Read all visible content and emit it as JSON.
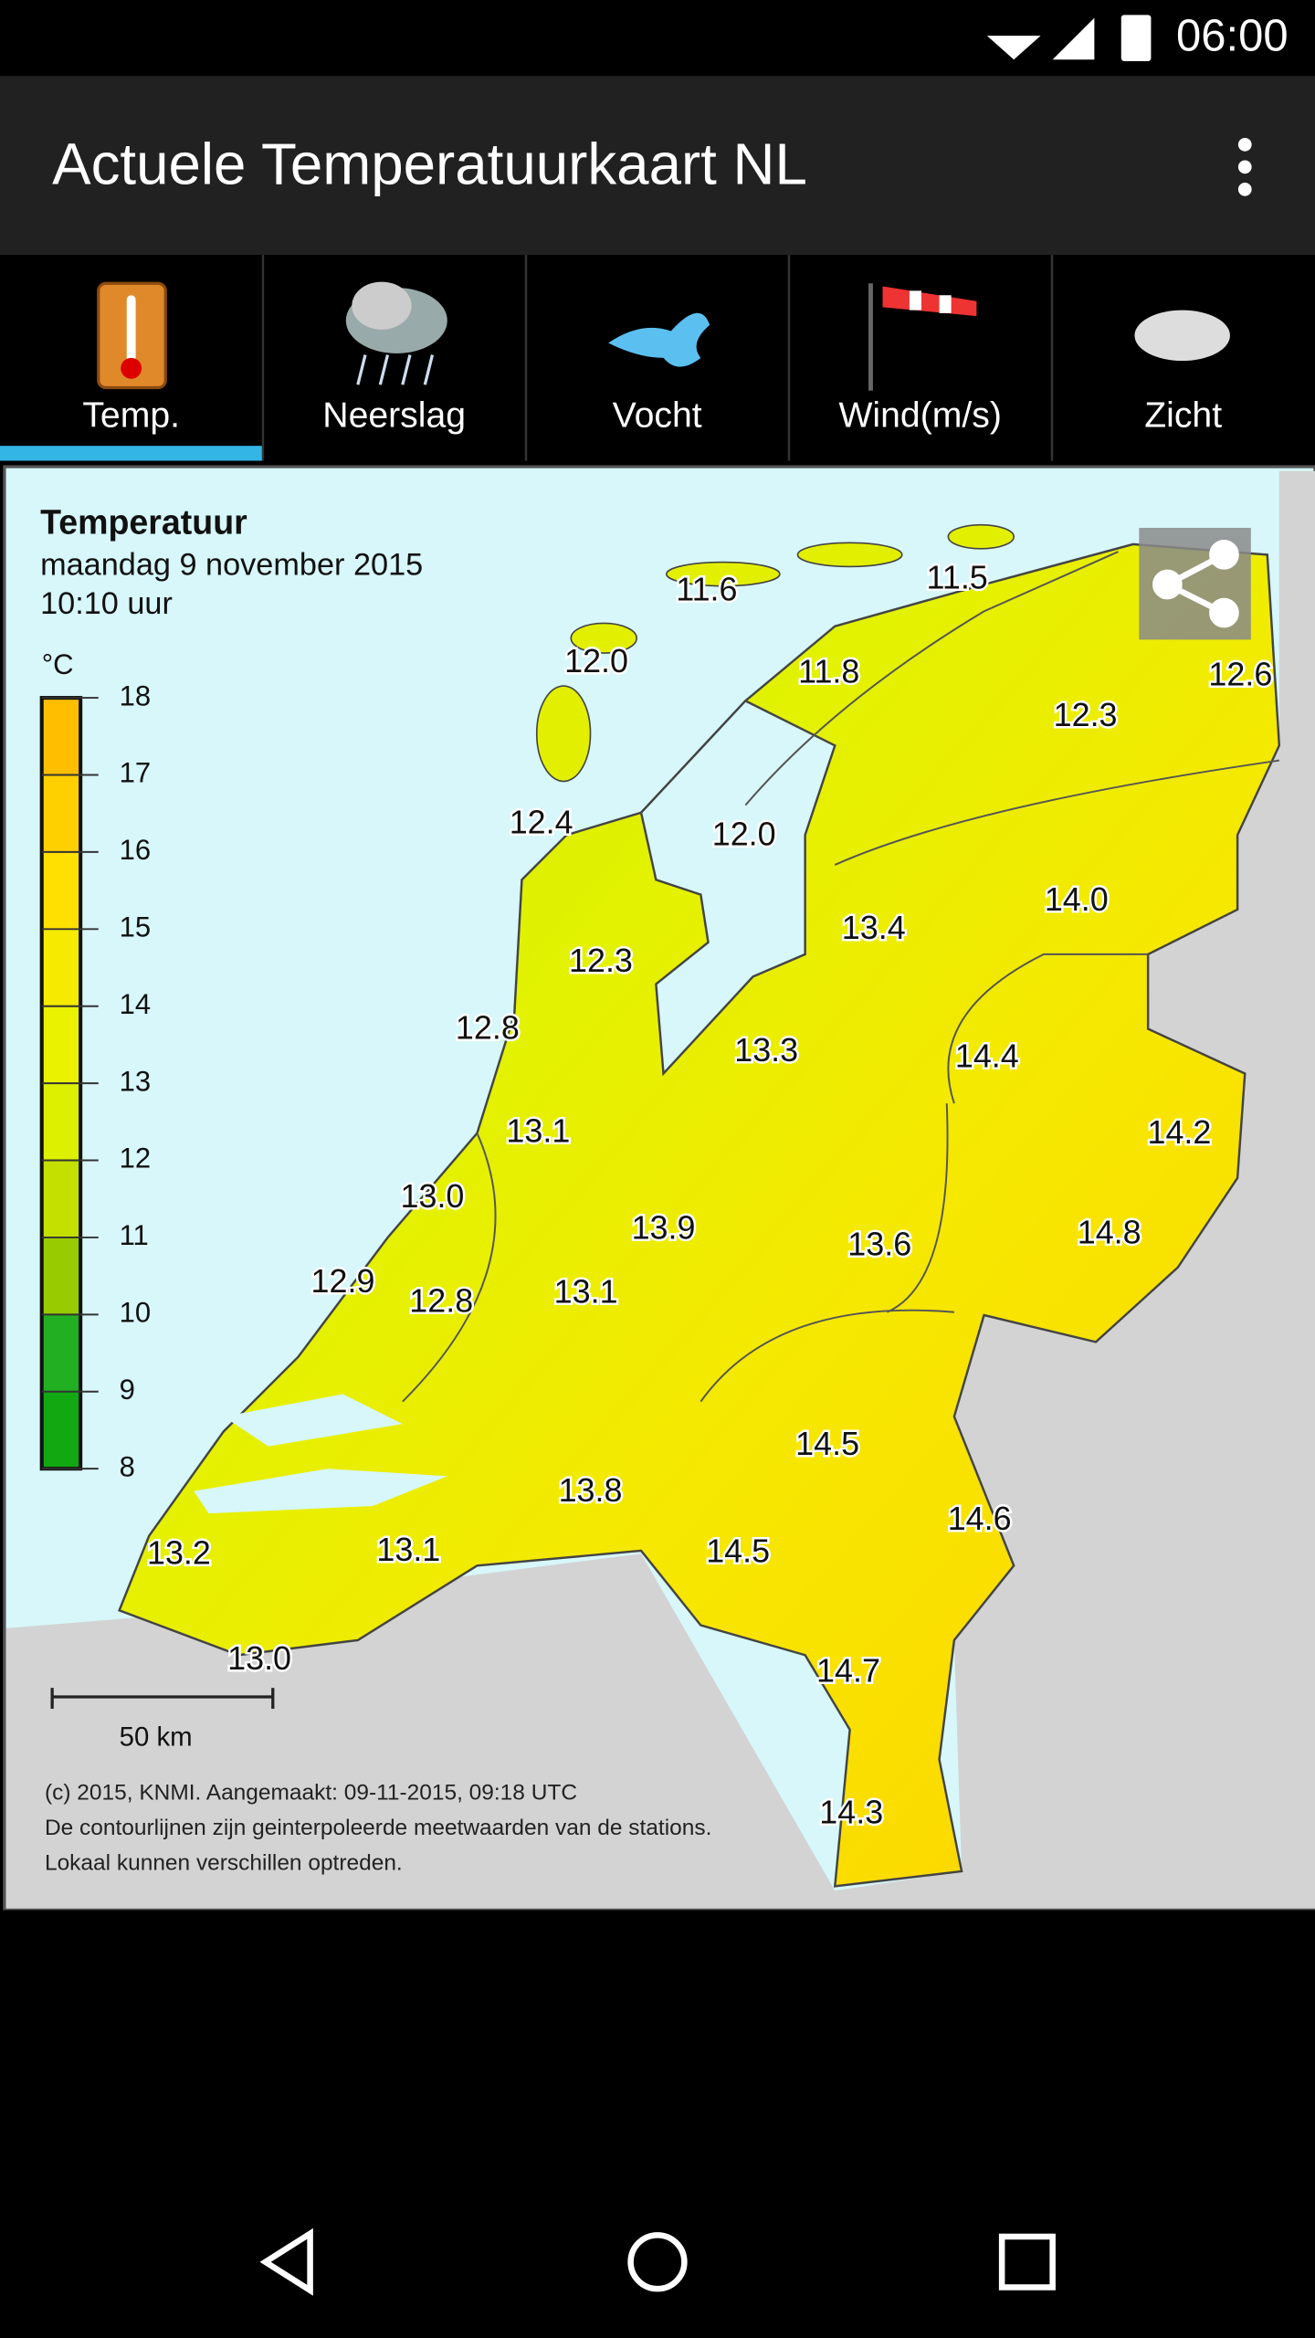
{
  "status_bar": {
    "time": "06:00"
  },
  "app_bar": {
    "title": "Actuele Temperatuurkaart NL"
  },
  "tabs": [
    "Temp.",
    "Neerslag",
    "Vocht",
    "Wind(m/s)",
    "Zicht"
  ],
  "map": {
    "title": "Temperatuur",
    "date": "maandag 9 november 2015",
    "time": "10:10 uur",
    "unit": "°C",
    "legend_ticks": [
      8,
      9,
      10,
      11,
      12,
      13,
      14,
      15,
      16,
      17,
      18
    ],
    "stations": [
      "11.6",
      "11.5",
      "12.0",
      "11.8",
      "12.6",
      "12.3",
      "12.4",
      "12.0",
      "14.0",
      "13.4",
      "12.3",
      "12.8",
      "13.3",
      "14.4",
      "14.2",
      "13.1",
      "13.0",
      "13.9",
      "14.8",
      "13.6",
      "12.9",
      "12.8",
      "13.1",
      "14.5",
      "13.8",
      "14.6",
      "13.2",
      "13.1",
      "14.5",
      "13.0",
      "14.7",
      "14.3"
    ],
    "scale": "50 km",
    "credits": [
      "(c) 2015, KNMI. Aangemaakt: 09-11-2015, 09:18 UTC",
      "De contourlijnen zijn geinterpoleerde meetwaarden van de stations.",
      "Lokaal kunnen verschillen optreden."
    ]
  }
}
